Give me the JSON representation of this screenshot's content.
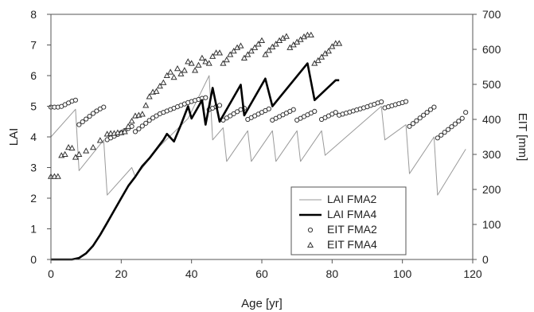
{
  "chart_data": {
    "type": "line",
    "xlabel": "Age [yr]",
    "ylabel": "LAI",
    "y2label": "EIT [mm]",
    "xlim": [
      0,
      120
    ],
    "ylim": [
      0,
      8
    ],
    "y2lim": [
      0,
      700
    ],
    "xticks": [
      "0",
      "20",
      "40",
      "60",
      "80",
      "100",
      "120"
    ],
    "yticks": [
      "0",
      "1",
      "2",
      "3",
      "4",
      "5",
      "6",
      "7",
      "8"
    ],
    "y2ticks": [
      "0",
      "100",
      "200",
      "300",
      "400",
      "500",
      "600",
      "700"
    ],
    "grid": false,
    "legend_position": "bottom-right",
    "colors": {
      "lai_fma2": "#9a9a9a",
      "lai_fma4": "#000000",
      "markers": "#333333"
    },
    "series": [
      {
        "name": "LAI FMA2",
        "axis": "left",
        "style": "thin-line",
        "points": [
          [
            0,
            4.0
          ],
          [
            7,
            4.9
          ],
          [
            8,
            2.9
          ],
          [
            15,
            3.9
          ],
          [
            16,
            2.1
          ],
          [
            23,
            3.0
          ],
          [
            24,
            2.7
          ],
          [
            31,
            3.7
          ],
          [
            39,
            4.6
          ],
          [
            45,
            6.0
          ],
          [
            46,
            3.9
          ],
          [
            49,
            4.3
          ],
          [
            50,
            3.2
          ],
          [
            56,
            4.2
          ],
          [
            57,
            3.2
          ],
          [
            63,
            4.2
          ],
          [
            64,
            3.2
          ],
          [
            70,
            4.2
          ],
          [
            71,
            3.2
          ],
          [
            77,
            4.2
          ],
          [
            78,
            3.4
          ],
          [
            94,
            5.0
          ],
          [
            95,
            3.9
          ],
          [
            101,
            4.4
          ],
          [
            102,
            2.8
          ],
          [
            109,
            4.0
          ],
          [
            110,
            2.1
          ],
          [
            118,
            3.6
          ]
        ]
      },
      {
        "name": "LAI FMA4",
        "axis": "left",
        "style": "thick-line",
        "points": [
          [
            0,
            0
          ],
          [
            6,
            0
          ],
          [
            8,
            0.05
          ],
          [
            10,
            0.2
          ],
          [
            12,
            0.45
          ],
          [
            14,
            0.8
          ],
          [
            16,
            1.2
          ],
          [
            18,
            1.6
          ],
          [
            20,
            2.0
          ],
          [
            22,
            2.4
          ],
          [
            24,
            2.7
          ],
          [
            26,
            3.05
          ],
          [
            28,
            3.3
          ],
          [
            30,
            3.6
          ],
          [
            32,
            3.9
          ],
          [
            33,
            4.1
          ],
          [
            35,
            3.85
          ],
          [
            37,
            4.4
          ],
          [
            39,
            5.0
          ],
          [
            40,
            4.6
          ],
          [
            43,
            5.2
          ],
          [
            44,
            4.4
          ],
          [
            46,
            5.6
          ],
          [
            48,
            4.5
          ],
          [
            54,
            5.7
          ],
          [
            55,
            4.7
          ],
          [
            61,
            5.9
          ],
          [
            63,
            5.0
          ],
          [
            73,
            6.4
          ],
          [
            75,
            5.2
          ],
          [
            81,
            5.85
          ],
          [
            82,
            5.85
          ]
        ]
      },
      {
        "name": "EIT FMA2",
        "axis": "right",
        "marker": "circle",
        "points": [
          [
            0,
            435
          ],
          [
            1,
            435
          ],
          [
            2,
            435
          ],
          [
            3,
            437
          ],
          [
            4,
            442
          ],
          [
            5,
            447
          ],
          [
            6,
            452
          ],
          [
            7,
            455
          ],
          [
            8,
            385
          ],
          [
            9,
            393
          ],
          [
            10,
            401
          ],
          [
            11,
            409
          ],
          [
            12,
            417
          ],
          [
            13,
            424
          ],
          [
            14,
            430
          ],
          [
            15,
            435
          ],
          [
            16,
            342
          ],
          [
            17,
            347
          ],
          [
            18,
            352
          ],
          [
            19,
            357
          ],
          [
            20,
            362
          ],
          [
            21,
            368
          ],
          [
            22,
            374
          ],
          [
            23,
            380
          ],
          [
            24,
            365
          ],
          [
            25,
            373
          ],
          [
            26,
            381
          ],
          [
            27,
            389
          ],
          [
            28,
            397
          ],
          [
            29,
            404
          ],
          [
            30,
            410
          ],
          [
            31,
            416
          ],
          [
            32,
            420
          ],
          [
            33,
            424
          ],
          [
            34,
            428
          ],
          [
            35,
            432
          ],
          [
            36,
            436
          ],
          [
            37,
            440
          ],
          [
            38,
            444
          ],
          [
            39,
            448
          ],
          [
            40,
            451
          ],
          [
            41,
            454
          ],
          [
            42,
            457
          ],
          [
            43,
            460
          ],
          [
            44,
            462
          ],
          [
            45,
            428
          ],
          [
            46,
            432
          ],
          [
            47,
            436
          ],
          [
            48,
            440
          ],
          [
            49,
            398
          ],
          [
            50,
            404
          ],
          [
            51,
            410
          ],
          [
            52,
            416
          ],
          [
            53,
            422
          ],
          [
            54,
            428
          ],
          [
            55,
            432
          ],
          [
            56,
            400
          ],
          [
            57,
            405
          ],
          [
            58,
            410
          ],
          [
            59,
            415
          ],
          [
            60,
            420
          ],
          [
            61,
            425
          ],
          [
            62,
            430
          ],
          [
            63,
            398
          ],
          [
            64,
            403
          ],
          [
            65,
            408
          ],
          [
            66,
            413
          ],
          [
            67,
            418
          ],
          [
            68,
            423
          ],
          [
            69,
            428
          ],
          [
            70,
            398
          ],
          [
            71,
            403
          ],
          [
            72,
            408
          ],
          [
            73,
            413
          ],
          [
            74,
            418
          ],
          [
            75,
            423
          ],
          [
            77,
            400
          ],
          [
            78,
            405
          ],
          [
            79,
            410
          ],
          [
            80,
            415
          ],
          [
            81,
            420
          ],
          [
            82,
            412
          ],
          [
            83,
            415
          ],
          [
            84,
            418
          ],
          [
            85,
            421
          ],
          [
            86,
            424
          ],
          [
            87,
            427
          ],
          [
            88,
            430
          ],
          [
            89,
            433
          ],
          [
            90,
            436
          ],
          [
            91,
            440
          ],
          [
            92,
            443
          ],
          [
            93,
            447
          ],
          [
            94,
            450
          ],
          [
            95,
            433
          ],
          [
            96,
            436
          ],
          [
            97,
            439
          ],
          [
            98,
            442
          ],
          [
            99,
            445
          ],
          [
            100,
            448
          ],
          [
            101,
            451
          ],
          [
            102,
            380
          ],
          [
            103,
            388
          ],
          [
            104,
            396
          ],
          [
            105,
            404
          ],
          [
            106,
            412
          ],
          [
            107,
            420
          ],
          [
            108,
            428
          ],
          [
            109,
            435
          ],
          [
            110,
            347
          ],
          [
            111,
            355
          ],
          [
            112,
            363
          ],
          [
            113,
            371
          ],
          [
            114,
            379
          ],
          [
            115,
            387
          ],
          [
            116,
            395
          ],
          [
            117,
            403
          ],
          [
            118,
            420
          ]
        ]
      },
      {
        "name": "EIT FMA4",
        "axis": "right",
        "marker": "triangle",
        "points": [
          [
            0,
            237
          ],
          [
            1,
            237
          ],
          [
            2,
            237
          ],
          [
            3,
            297
          ],
          [
            4,
            300
          ],
          [
            5,
            320
          ],
          [
            6,
            318
          ],
          [
            7,
            292
          ],
          [
            8,
            300
          ],
          [
            10,
            310
          ],
          [
            12,
            320
          ],
          [
            14,
            340
          ],
          [
            16,
            358
          ],
          [
            17,
            360
          ],
          [
            18,
            360
          ],
          [
            19,
            362
          ],
          [
            20,
            362
          ],
          [
            21,
            365
          ],
          [
            22,
            380
          ],
          [
            23,
            395
          ],
          [
            24,
            410
          ],
          [
            25,
            412
          ],
          [
            26,
            415
          ],
          [
            27,
            440
          ],
          [
            28,
            465
          ],
          [
            29,
            478
          ],
          [
            30,
            480
          ],
          [
            31,
            495
          ],
          [
            32,
            505
          ],
          [
            33,
            525
          ],
          [
            34,
            535
          ],
          [
            35,
            520
          ],
          [
            36,
            545
          ],
          [
            37,
            530
          ],
          [
            38,
            540
          ],
          [
            39,
            565
          ],
          [
            40,
            560
          ],
          [
            41,
            540
          ],
          [
            42,
            555
          ],
          [
            43,
            575
          ],
          [
            44,
            565
          ],
          [
            45,
            560
          ],
          [
            46,
            580
          ],
          [
            47,
            590
          ],
          [
            48,
            590
          ],
          [
            49,
            560
          ],
          [
            50,
            570
          ],
          [
            51,
            585
          ],
          [
            52,
            595
          ],
          [
            53,
            605
          ],
          [
            54,
            610
          ],
          [
            55,
            575
          ],
          [
            56,
            585
          ],
          [
            57,
            595
          ],
          [
            58,
            605
          ],
          [
            59,
            615
          ],
          [
            60,
            625
          ],
          [
            61,
            585
          ],
          [
            62,
            597
          ],
          [
            63,
            607
          ],
          [
            64,
            615
          ],
          [
            65,
            625
          ],
          [
            66,
            632
          ],
          [
            67,
            637
          ],
          [
            68,
            605
          ],
          [
            69,
            613
          ],
          [
            70,
            621
          ],
          [
            71,
            628
          ],
          [
            72,
            636
          ],
          [
            73,
            641
          ],
          [
            74,
            641
          ],
          [
            75,
            560
          ],
          [
            76,
            568
          ],
          [
            77,
            578
          ],
          [
            78,
            588
          ],
          [
            79,
            595
          ],
          [
            80,
            608
          ],
          [
            81,
            617
          ],
          [
            82,
            617
          ]
        ]
      }
    ]
  }
}
